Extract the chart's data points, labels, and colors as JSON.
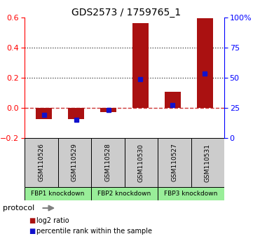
{
  "title": "GDS2573 / 1759765_1",
  "samples": [
    "GSM110526",
    "GSM110529",
    "GSM110528",
    "GSM110530",
    "GSM110527",
    "GSM110531"
  ],
  "log2_ratio": [
    -0.075,
    -0.075,
    -0.03,
    0.565,
    0.105,
    0.595
  ],
  "percentile_rank": [
    19,
    15,
    23,
    49,
    27.5,
    53.5
  ],
  "ylim_left": [
    -0.2,
    0.6
  ],
  "ylim_right": [
    0,
    100
  ],
  "yticks_left": [
    -0.2,
    0.0,
    0.2,
    0.4,
    0.6
  ],
  "yticks_right": [
    0,
    25,
    50,
    75,
    100
  ],
  "ytick_labels_right": [
    "0",
    "25",
    "50",
    "75",
    "100%"
  ],
  "hlines": [
    0.2,
    0.4
  ],
  "bar_color": "#aa1111",
  "dot_color": "#1111cc",
  "zero_line_color": "#cc3333",
  "hline_color": "#333333",
  "groups": [
    {
      "label": "FBP1 knockdown",
      "start": 0,
      "end": 2
    },
    {
      "label": "FBP2 knockdown",
      "start": 2,
      "end": 4
    },
    {
      "label": "FBP3 knockdown",
      "start": 4,
      "end": 6
    }
  ],
  "group_color": "#99ee99",
  "sample_box_color": "#cccccc",
  "protocol_label": "protocol",
  "legend_bar_label": "log2 ratio",
  "legend_dot_label": "percentile rank within the sample",
  "bar_width": 0.5
}
